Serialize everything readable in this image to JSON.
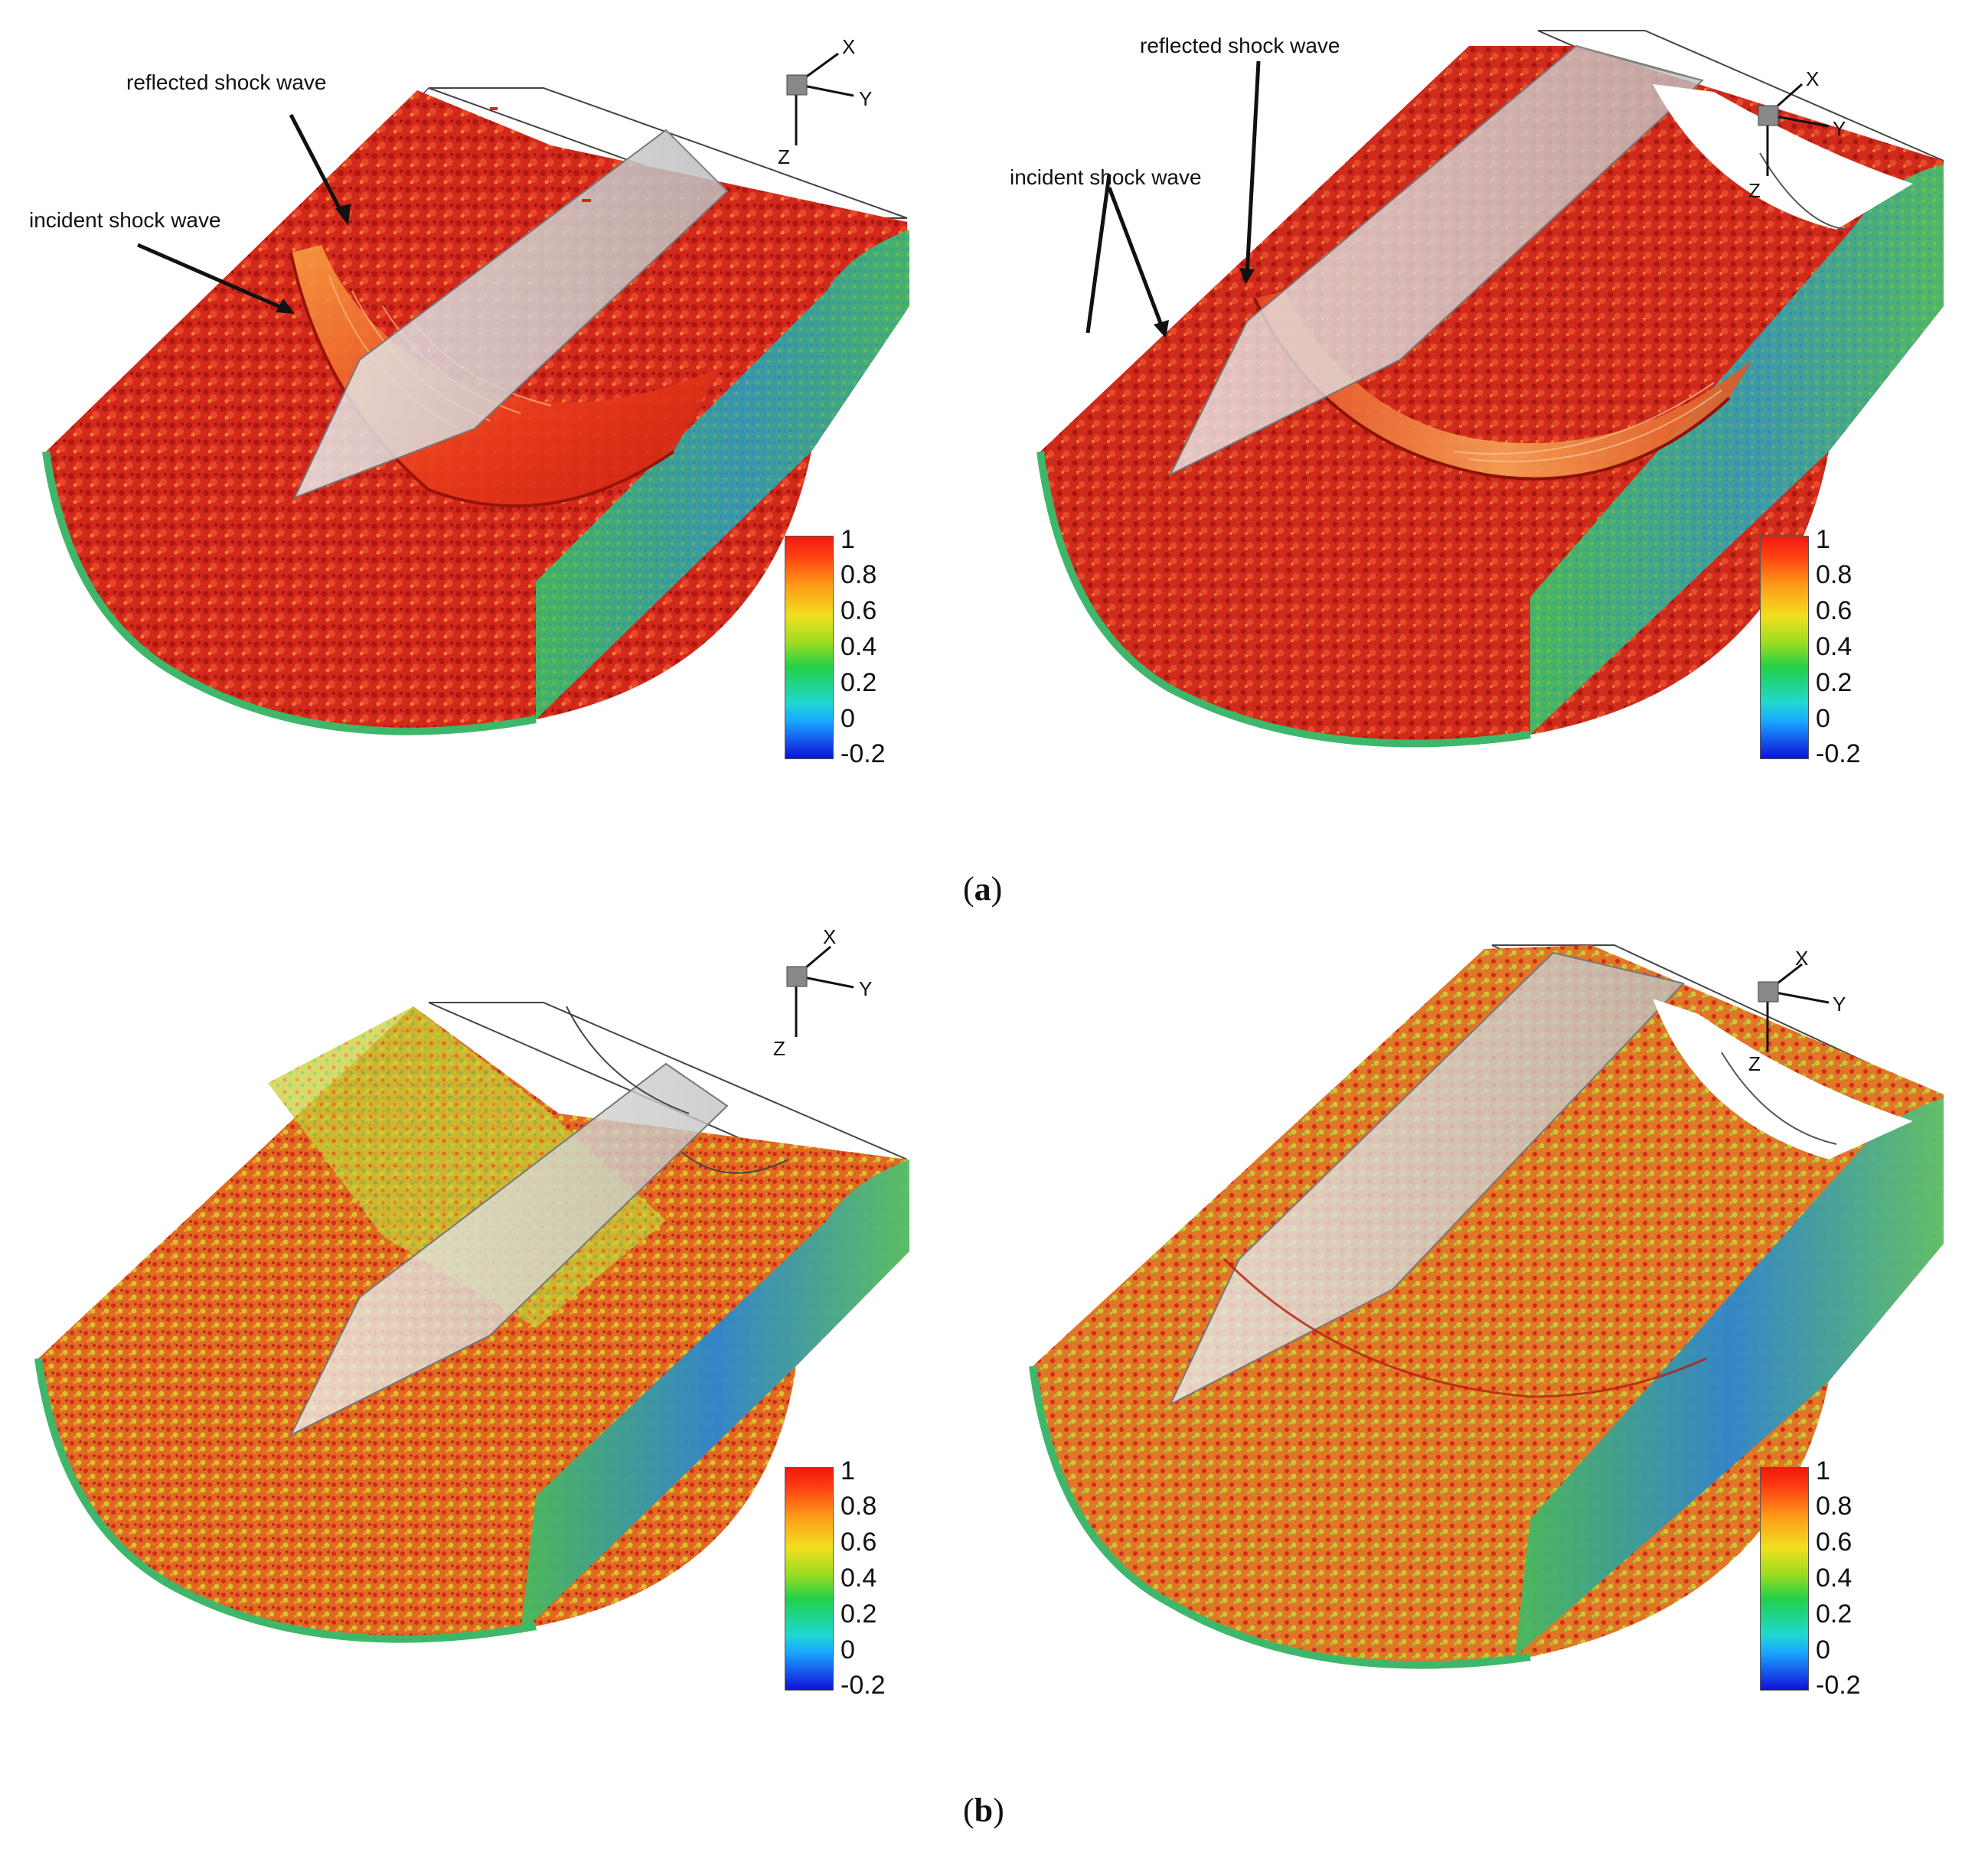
{
  "figure": {
    "caption_a": {
      "open": "(",
      "letter": "a",
      "close": ")"
    },
    "caption_b": {
      "open": "(",
      "letter": "b",
      "close": ")"
    },
    "colorbar_ticks": [
      "1",
      "0.8",
      "0.6",
      "0.4",
      "0.2",
      "0",
      "-0.2"
    ],
    "axis_labels": {
      "x": "X",
      "y": "Y",
      "z": "Z"
    },
    "annotations": {
      "reflected": "reflected shock wave",
      "incident": "incident shock wave"
    }
  },
  "colors": {
    "turb_red": "#d7261a",
    "turb_dark": "#a5160d",
    "turb_orange": "#f07a1c",
    "turb_yellow": "#d9d230",
    "turb_green": "#3fba4a",
    "turb_blue": "#2a70c8",
    "body_gray": "#d8d8d8",
    "shock_orange": "#f39a3b"
  }
}
